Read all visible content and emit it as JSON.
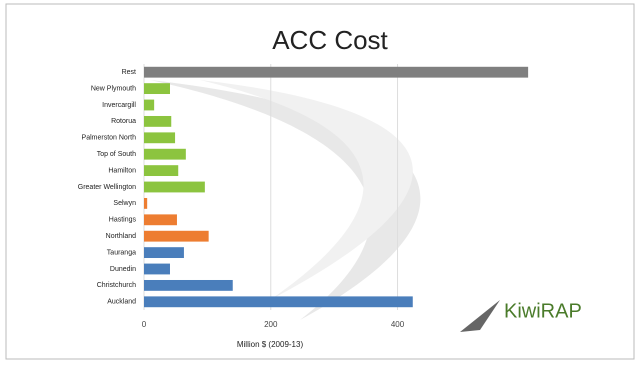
{
  "chart_data": {
    "type": "bar",
    "orientation": "horizontal",
    "title": "ACC Cost",
    "x_label": "Million $ (2009-13)",
    "categories": [
      "Rest",
      "New Plymouth",
      "Invercargill",
      "Rotorua",
      "Palmerston North",
      "Top of South",
      "Hamilton",
      "Greater Wellington",
      "Selwyn",
      "Hastings",
      "Northland",
      "Tauranga",
      "Dunedin",
      "Christchurch",
      "Auckland"
    ],
    "values": [
      606,
      41,
      16,
      43,
      49,
      66,
      54,
      96,
      5,
      52,
      102,
      63,
      41,
      140,
      424
    ],
    "colors": [
      "#7f7f7f",
      "#8cc43f",
      "#8cc43f",
      "#8cc43f",
      "#8cc43f",
      "#8cc43f",
      "#8cc43f",
      "#8cc43f",
      "#ed7d31",
      "#ed7d31",
      "#ed7d31",
      "#4a7ebb",
      "#4a7ebb",
      "#4a7ebb",
      "#4a7ebb"
    ],
    "xlim": [
      0,
      620
    ],
    "xticks": [
      0,
      200,
      400
    ],
    "grid": true,
    "logo_text": "KiwiRAP"
  }
}
